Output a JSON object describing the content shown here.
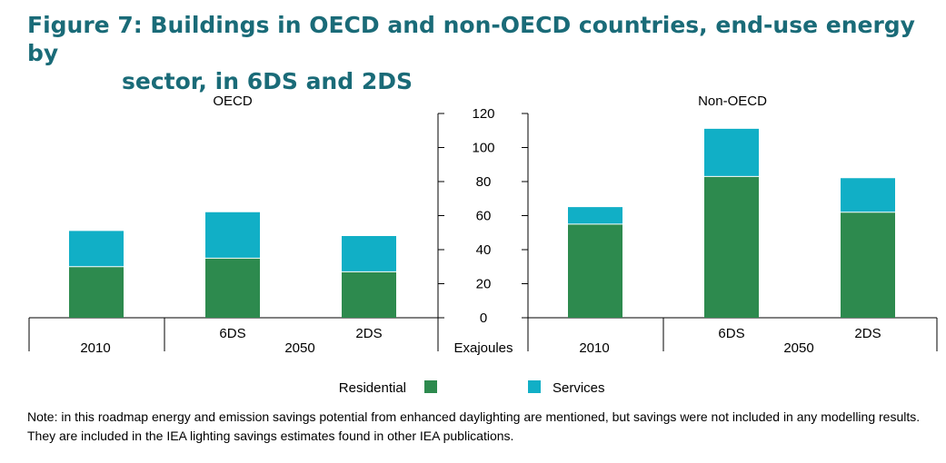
{
  "title": {
    "line1": "Figure 7: Buildings in OECD and non-OECD countries, end-use energy by",
    "line2": "sector, in 6DS and 2DS"
  },
  "note": "Note: in this roadmap energy and emission savings potential from enhanced daylighting are mentioned, but savings were not included in any modelling results. They are included in the IEA lighting savings estimates found in other IEA publications.",
  "colors": {
    "residential": "#2d8a4e",
    "services": "#11afc6",
    "title": "#1a6b78"
  },
  "chart_data": {
    "type": "bar",
    "stacked": true,
    "ylabel": "Exajoules",
    "ylim": [
      0,
      120
    ],
    "yticks": [
      0,
      20,
      40,
      60,
      80,
      100,
      120
    ],
    "legend": [
      "Residential",
      "Services"
    ],
    "legend_position": "bottom",
    "panels": [
      {
        "name": "OECD",
        "bars": [
          {
            "label": "",
            "group": "2010",
            "residential": 30,
            "services": 21
          },
          {
            "label": "6DS",
            "group": "2050",
            "residential": 35,
            "services": 27
          },
          {
            "label": "2DS",
            "group": "2050",
            "residential": 27,
            "services": 21
          }
        ]
      },
      {
        "name": "Non-OECD",
        "bars": [
          {
            "label": "",
            "group": "2010",
            "residential": 55,
            "services": 10
          },
          {
            "label": "6DS",
            "group": "2050",
            "residential": 83,
            "services": 28
          },
          {
            "label": "2DS",
            "group": "2050",
            "residential": 62,
            "services": 20
          }
        ]
      }
    ]
  }
}
